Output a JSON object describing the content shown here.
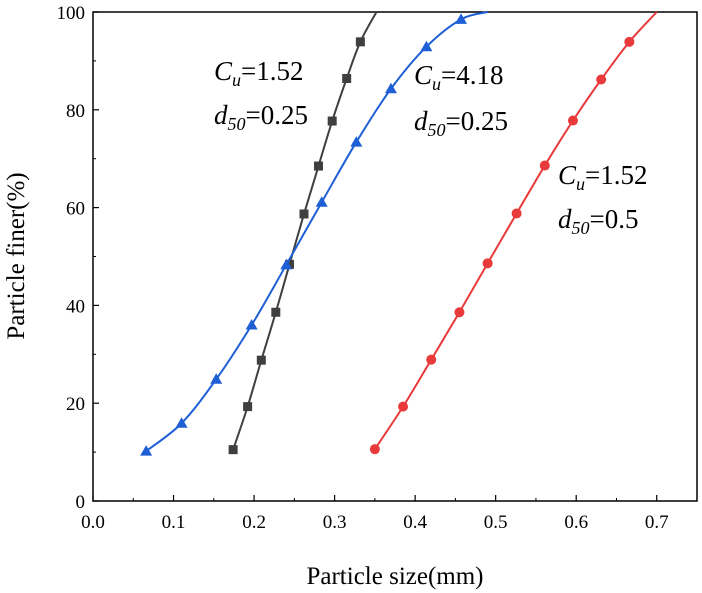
{
  "chart_data": {
    "type": "line",
    "xlabel": "Particle size(mm)",
    "ylabel": "Particle finer(%)",
    "xlim": [
      0.0,
      0.75
    ],
    "ylim": [
      0,
      100
    ],
    "xticks": [
      "0.0",
      "0.1",
      "0.2",
      "0.3",
      "0.4",
      "0.5",
      "0.6",
      "0.7"
    ],
    "yticks": [
      "0",
      "20",
      "40",
      "60",
      "80",
      "100"
    ],
    "xtick_values": [
      0.0,
      0.1,
      0.2,
      0.3,
      0.4,
      0.5,
      0.6,
      0.7
    ],
    "ytick_values": [
      0,
      20,
      40,
      60,
      80,
      100
    ],
    "grid": false,
    "series": [
      {
        "marker": "square",
        "color": "#3f3f3f",
        "points": [
          [
            0.174,
            10.5
          ],
          [
            0.192,
            19.3
          ],
          [
            0.209,
            28.8
          ],
          [
            0.227,
            38.6
          ],
          [
            0.244,
            48.4
          ],
          [
            0.262,
            58.7
          ],
          [
            0.28,
            68.5
          ],
          [
            0.297,
            77.7
          ],
          [
            0.315,
            86.4
          ],
          [
            0.332,
            93.9
          ],
          [
            0.352,
            100
          ]
        ]
      },
      {
        "marker": "triangle",
        "color": "#1f5fd6",
        "points": [
          [
            0.066,
            10.2
          ],
          [
            0.11,
            15.9
          ],
          [
            0.153,
            24.9
          ],
          [
            0.197,
            36.0
          ],
          [
            0.24,
            48.3
          ],
          [
            0.284,
            61.1
          ],
          [
            0.327,
            73.4
          ],
          [
            0.37,
            84.3
          ],
          [
            0.414,
            92.9
          ],
          [
            0.457,
            98.5
          ],
          [
            0.49,
            100
          ]
        ]
      },
      {
        "marker": "circle",
        "color": "#e83a3a",
        "points": [
          [
            0.35,
            10.6
          ],
          [
            0.385,
            19.3
          ],
          [
            0.42,
            28.9
          ],
          [
            0.455,
            38.6
          ],
          [
            0.49,
            48.6
          ],
          [
            0.526,
            58.8
          ],
          [
            0.561,
            68.6
          ],
          [
            0.596,
            77.8
          ],
          [
            0.631,
            86.2
          ],
          [
            0.666,
            93.9
          ],
          [
            0.7,
            100
          ]
        ]
      }
    ],
    "annotations": [
      {
        "symbol": "C",
        "sub": "u",
        "value": "=1.52"
      },
      {
        "symbol": "d",
        "sub": "50",
        "value": "=0.25"
      },
      {
        "symbol": "C",
        "sub": "u",
        "value": "=4.18"
      },
      {
        "symbol": "d",
        "sub": "50",
        "value": "=0.25"
      },
      {
        "symbol": "C",
        "sub": "u",
        "value": "=1.52"
      },
      {
        "symbol": "d",
        "sub": "50",
        "value": "=0.5"
      }
    ]
  }
}
